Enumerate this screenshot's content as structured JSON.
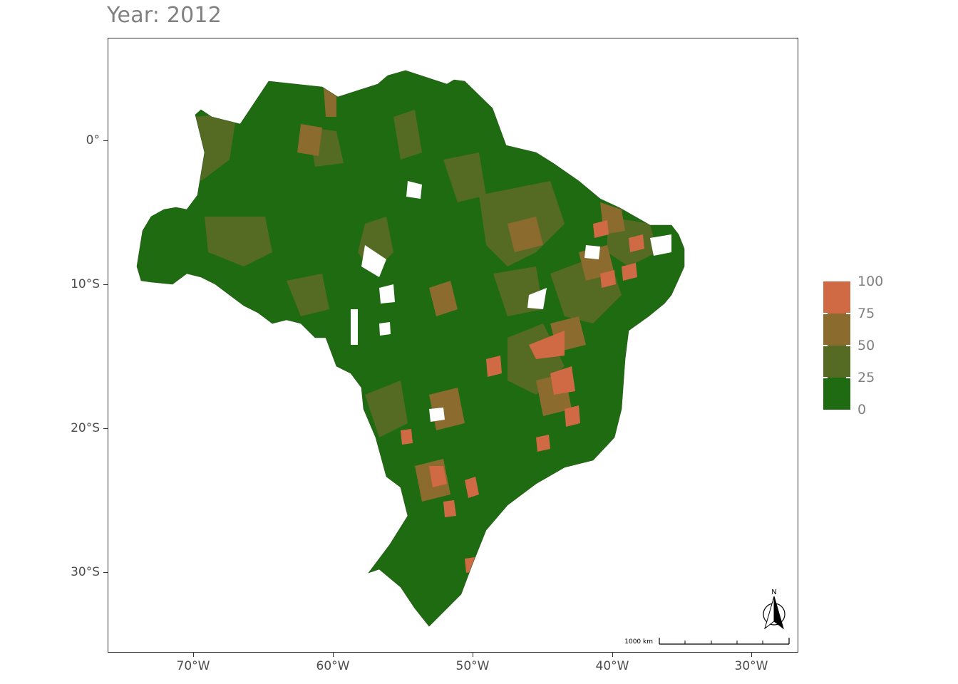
{
  "title": "Year: 2012",
  "colors": {
    "class_0_25": "#1e6b12",
    "class_25_50": "#556b23",
    "class_50_75": "#8b6b2e",
    "class_75_100": "#d06a45",
    "panel_border": "#333333",
    "background": "#ffffff"
  },
  "axes": {
    "y_ticks": [
      "0°",
      "10°S",
      "20°S",
      "30°S"
    ],
    "x_ticks": [
      "70°W",
      "60°W",
      "50°W",
      "40°W",
      "30°W"
    ]
  },
  "legend": {
    "labels": [
      "100",
      "75",
      "50",
      "25",
      "0"
    ],
    "placement": "right"
  },
  "scale_bar": {
    "label": "1000 km"
  },
  "north_arrow": {
    "label": "N",
    "icon": "north-arrow-icon"
  }
}
